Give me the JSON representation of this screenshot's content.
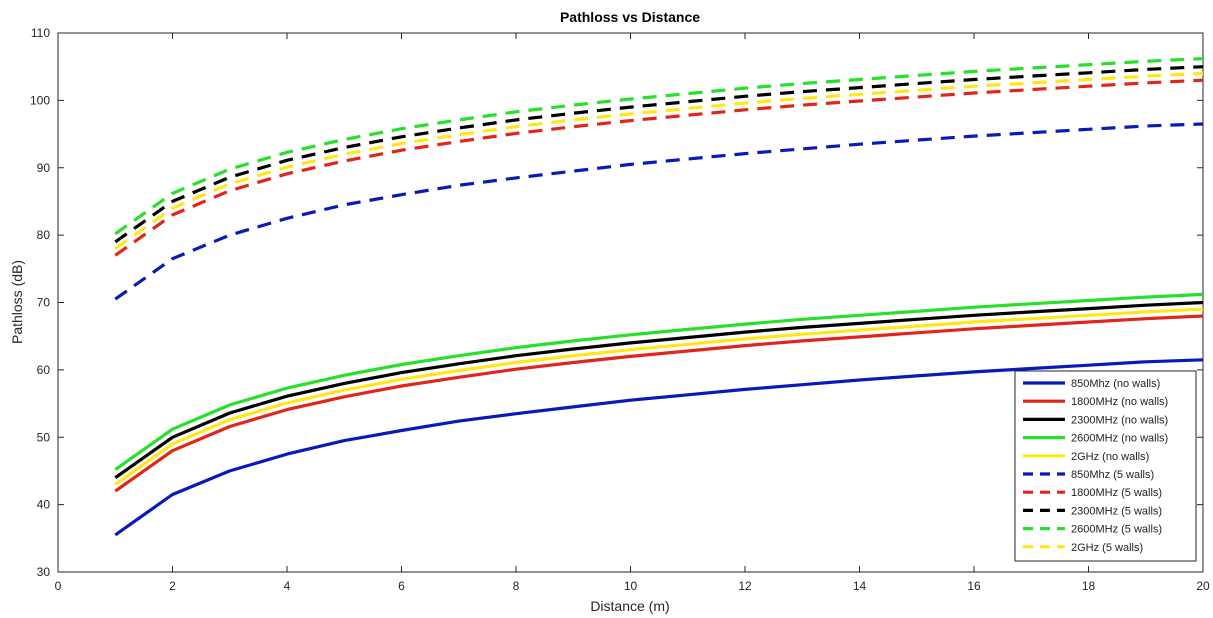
{
  "chart_data": {
    "type": "line",
    "title": "Pathloss vs Distance",
    "xlabel": "Distance (m)",
    "ylabel": "Pathloss (dB)",
    "xlim": [
      0,
      20
    ],
    "ylim": [
      30,
      110
    ],
    "xticks": [
      0,
      2,
      4,
      6,
      8,
      10,
      12,
      14,
      16,
      18,
      20
    ],
    "yticks": [
      30,
      40,
      50,
      60,
      70,
      80,
      90,
      100,
      110
    ],
    "grid": false,
    "legend_position": "bottom-right",
    "x": [
      1,
      2,
      3,
      4,
      5,
      6,
      7,
      8,
      9,
      10,
      11,
      12,
      13,
      14,
      15,
      16,
      17,
      18,
      19,
      20
    ],
    "series": [
      {
        "name": "850Mhz (no walls)",
        "color": "#0a1ab8",
        "dash": "solid",
        "values": [
          35.5,
          41.5,
          45.0,
          47.5,
          49.5,
          51.0,
          52.4,
          53.5,
          54.5,
          55.5,
          56.3,
          57.1,
          57.8,
          58.5,
          59.1,
          59.7,
          60.2,
          60.7,
          61.2,
          61.5
        ]
      },
      {
        "name": "1800MHz (no walls)",
        "color": "#e0261c",
        "dash": "solid",
        "values": [
          42.0,
          48.0,
          51.6,
          54.1,
          56.0,
          57.6,
          58.9,
          60.1,
          61.1,
          62.0,
          62.8,
          63.6,
          64.3,
          64.9,
          65.5,
          66.1,
          66.6,
          67.1,
          67.6,
          68.0
        ]
      },
      {
        "name": "2300MHz (no walls)",
        "color": "#000000",
        "dash": "solid",
        "values": [
          44.0,
          50.0,
          53.6,
          56.1,
          58.0,
          59.6,
          60.9,
          62.1,
          63.1,
          64.0,
          64.8,
          65.6,
          66.3,
          66.9,
          67.5,
          68.1,
          68.6,
          69.1,
          69.6,
          70.0
        ]
      },
      {
        "name": "2600MHz (no walls)",
        "color": "#27e02a",
        "dash": "solid",
        "values": [
          45.2,
          51.2,
          54.8,
          57.3,
          59.2,
          60.8,
          62.1,
          63.3,
          64.3,
          65.2,
          66.0,
          66.8,
          67.5,
          68.1,
          68.7,
          69.3,
          69.8,
          70.3,
          70.8,
          71.2
        ]
      },
      {
        "name": "2GHz (no walls)",
        "color": "#ffe81a",
        "dash": "solid",
        "values": [
          43.0,
          49.0,
          52.6,
          55.1,
          57.0,
          58.6,
          59.9,
          61.1,
          62.1,
          63.0,
          63.8,
          64.6,
          65.3,
          65.9,
          66.5,
          67.1,
          67.6,
          68.1,
          68.6,
          69.0
        ]
      },
      {
        "name": "850Mhz (5 walls)",
        "color": "#0a1ab8",
        "dash": "dashed",
        "values": [
          70.5,
          76.5,
          80.0,
          82.5,
          84.5,
          86.0,
          87.4,
          88.5,
          89.5,
          90.5,
          91.3,
          92.1,
          92.8,
          93.5,
          94.1,
          94.7,
          95.2,
          95.7,
          96.2,
          96.5
        ]
      },
      {
        "name": "1800MHz (5 walls)",
        "color": "#e0261c",
        "dash": "dashed",
        "values": [
          77.0,
          83.0,
          86.6,
          89.1,
          91.0,
          92.6,
          93.9,
          95.1,
          96.1,
          97.0,
          97.8,
          98.6,
          99.3,
          99.9,
          100.5,
          101.1,
          101.6,
          102.1,
          102.6,
          103.0
        ]
      },
      {
        "name": "2300MHz (5 walls)",
        "color": "#000000",
        "dash": "dashed",
        "values": [
          79.0,
          85.0,
          88.6,
          91.1,
          93.0,
          94.6,
          95.9,
          97.1,
          98.1,
          99.0,
          99.8,
          100.6,
          101.3,
          101.9,
          102.5,
          103.1,
          103.6,
          104.1,
          104.6,
          105.0
        ]
      },
      {
        "name": "2600MHz (5 walls)",
        "color": "#27e02a",
        "dash": "dashed",
        "values": [
          80.2,
          86.2,
          89.8,
          92.3,
          94.2,
          95.8,
          97.1,
          98.3,
          99.3,
          100.2,
          101.0,
          101.8,
          102.5,
          103.1,
          103.7,
          104.3,
          104.8,
          105.3,
          105.8,
          106.2
        ]
      },
      {
        "name": "2GHz (5 walls)",
        "color": "#ffe81a",
        "dash": "dashed",
        "values": [
          78.0,
          84.0,
          87.6,
          90.1,
          92.0,
          93.6,
          94.9,
          96.1,
          97.1,
          98.0,
          98.8,
          99.6,
          100.3,
          100.9,
          101.5,
          102.1,
          102.6,
          103.1,
          103.6,
          104.0
        ]
      }
    ]
  }
}
